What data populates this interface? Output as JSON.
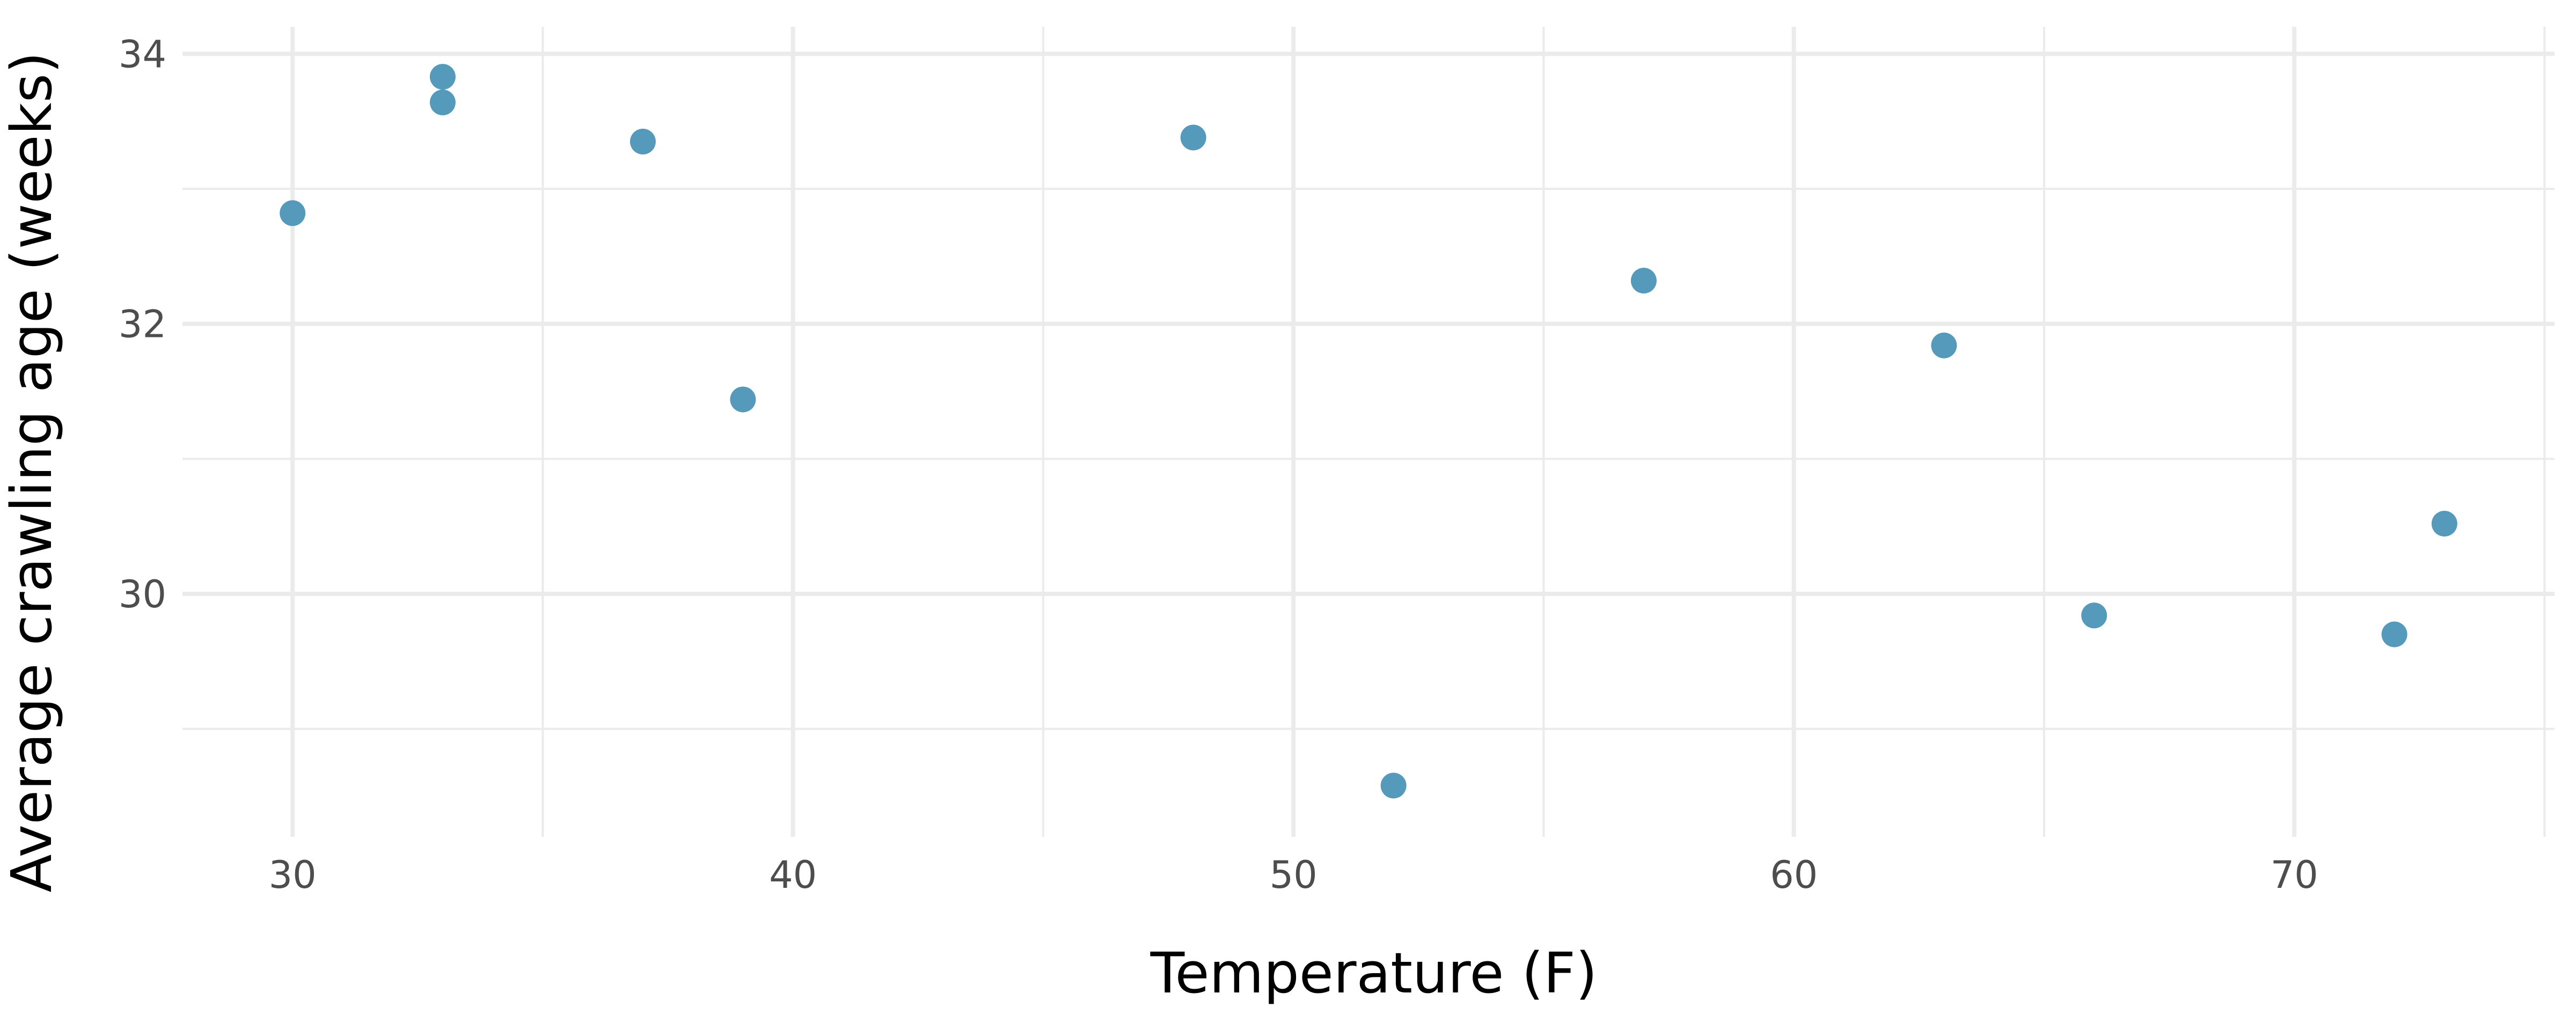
{
  "chart_data": {
    "type": "scatter",
    "title": "",
    "xlabel": "Temperature (F)",
    "ylabel": "Average crawling age (weeks)",
    "xlim": [
      27.8,
      75.2
    ],
    "ylim": [
      28.2,
      34.2
    ],
    "x_ticks": [
      30,
      40,
      50,
      60,
      70
    ],
    "x_minor_ticks": [
      35,
      45,
      55,
      65,
      75
    ],
    "y_ticks": [
      30,
      32,
      34
    ],
    "y_minor_ticks": [
      29,
      31,
      33
    ],
    "grid": true,
    "point_color": "#5599bb",
    "series": [
      {
        "x": [
          30,
          33,
          33,
          37,
          39,
          48,
          52,
          57,
          63,
          66,
          72,
          73
        ],
        "y": [
          32.82,
          33.83,
          33.64,
          33.35,
          31.44,
          33.38,
          28.58,
          32.32,
          31.84,
          29.84,
          29.7,
          30.52
        ]
      }
    ]
  }
}
